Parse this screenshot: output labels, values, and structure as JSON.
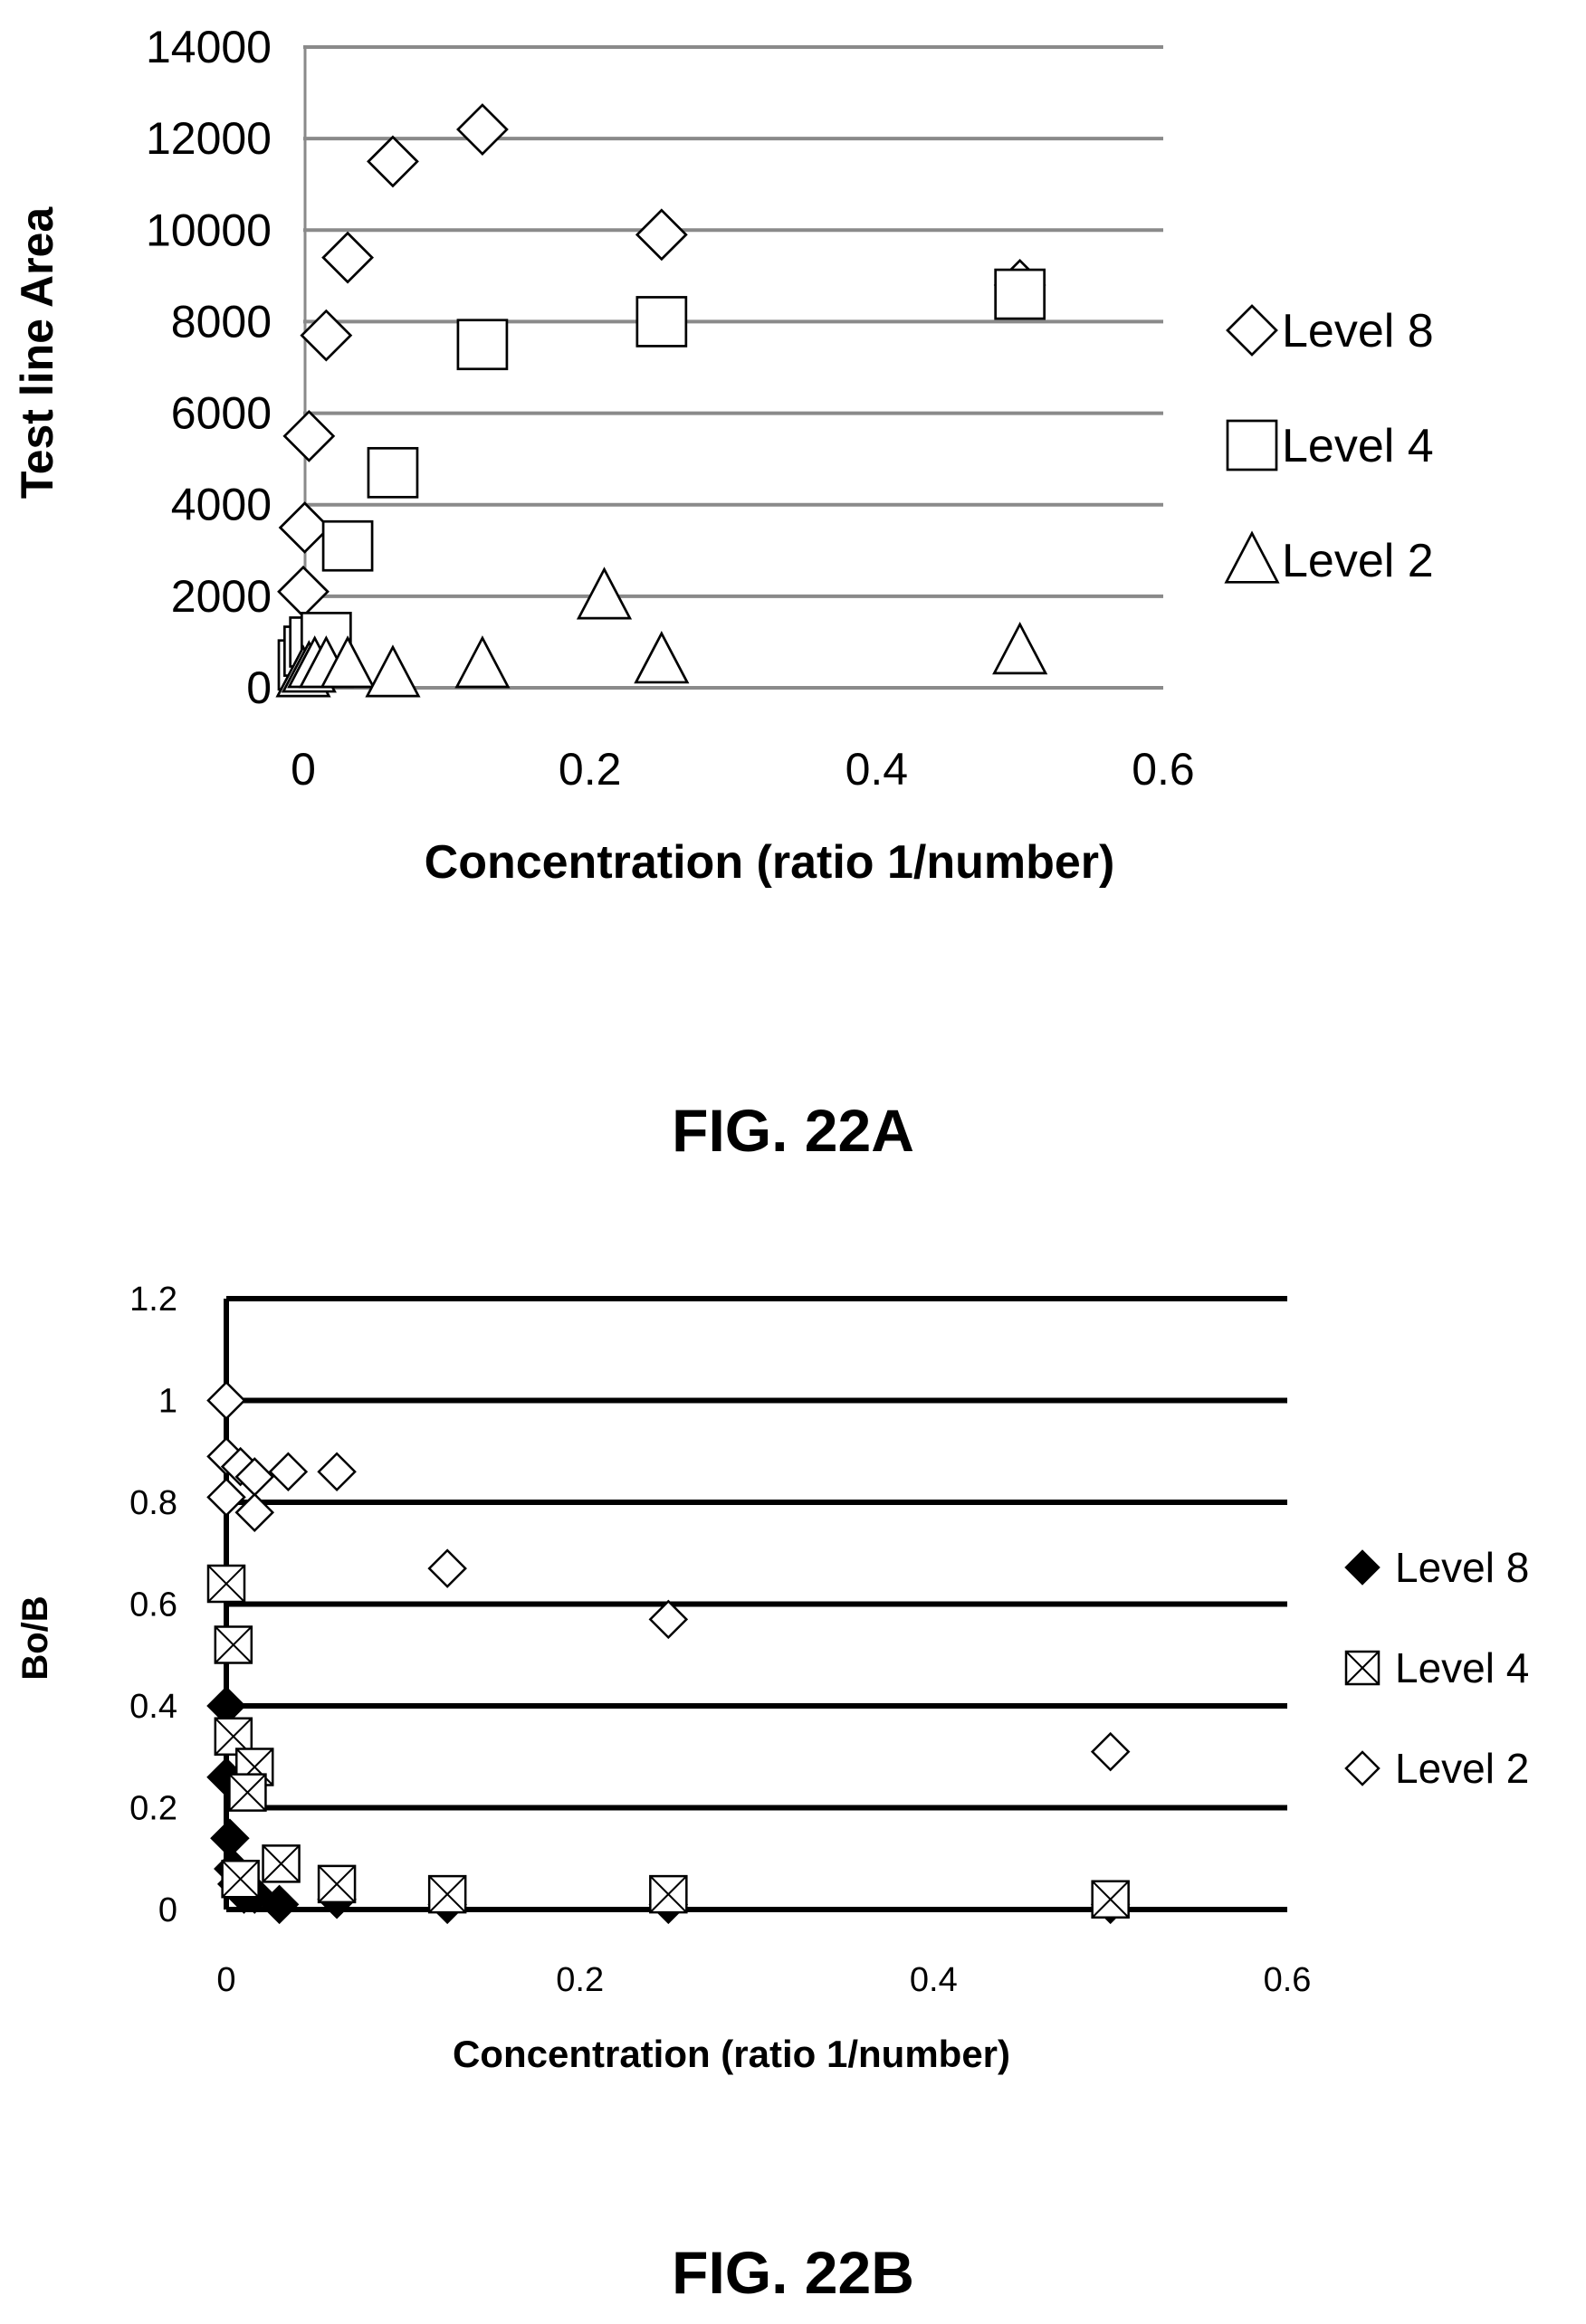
{
  "figures": {
    "fig_a_caption": "FIG. 22A",
    "fig_b_caption": "FIG. 22B"
  },
  "chart_data": [
    {
      "type": "scatter",
      "caption": "FIG. 22A",
      "xlabel": "Concentration (ratio 1/number)",
      "ylabel": "Test line Area",
      "xlim": [
        0,
        0.6
      ],
      "ylim": [
        0,
        14000
      ],
      "xticks": [
        "0",
        "0.2",
        "0.4",
        "0.6"
      ],
      "yticks": [
        "0",
        "2000",
        "4000",
        "6000",
        "8000",
        "10000",
        "12000",
        "14000"
      ],
      "grid": "horizontal",
      "legend_position": "right",
      "series": [
        {
          "name": "Level 8",
          "marker": "diamond-open",
          "points": [
            [
              0.0,
              2100
            ],
            [
              0.001,
              3500
            ],
            [
              0.004,
              5500
            ],
            [
              0.016,
              7700
            ],
            [
              0.031,
              9400
            ],
            [
              0.0625,
              11500
            ],
            [
              0.125,
              12200
            ],
            [
              0.25,
              9900
            ],
            [
              0.5,
              8800
            ]
          ]
        },
        {
          "name": "Level 4",
          "marker": "square-open",
          "points": [
            [
              0.0,
              500
            ],
            [
              0.004,
              800
            ],
            [
              0.008,
              1000
            ],
            [
              0.016,
              1100
            ],
            [
              0.031,
              3100
            ],
            [
              0.0625,
              4700
            ],
            [
              0.125,
              7500
            ],
            [
              0.25,
              8000
            ],
            [
              0.5,
              8600
            ]
          ]
        },
        {
          "name": "Level 2",
          "marker": "triangle-open",
          "points": [
            [
              0.0,
              300
            ],
            [
              0.004,
              400
            ],
            [
              0.008,
              500
            ],
            [
              0.016,
              500
            ],
            [
              0.031,
              500
            ],
            [
              0.0625,
              300
            ],
            [
              0.125,
              500
            ],
            [
              0.21,
              2000
            ],
            [
              0.25,
              600
            ],
            [
              0.5,
              800
            ]
          ]
        }
      ]
    },
    {
      "type": "scatter",
      "caption": "FIG. 22B",
      "xlabel": "Concentration (ratio 1/number)",
      "ylabel": "Bo/B",
      "xlim": [
        0,
        0.6
      ],
      "ylim": [
        0,
        1.2
      ],
      "xticks": [
        "0",
        "0.2",
        "0.4",
        "0.6"
      ],
      "yticks": [
        "0",
        "0.2",
        "0.4",
        "0.6",
        "0.8",
        "1",
        "1.2"
      ],
      "grid": "horizontal",
      "legend_position": "right",
      "series": [
        {
          "name": "Level 8",
          "marker": "diamond-filled",
          "points": [
            [
              0.0,
              0.4
            ],
            [
              0.0,
              0.26
            ],
            [
              0.002,
              0.14
            ],
            [
              0.004,
              0.08
            ],
            [
              0.006,
              0.05
            ],
            [
              0.01,
              0.03
            ],
            [
              0.016,
              0.03
            ],
            [
              0.03,
              0.01
            ],
            [
              0.0625,
              0.02
            ],
            [
              0.125,
              0.01
            ],
            [
              0.25,
              0.01
            ],
            [
              0.5,
              0.01
            ]
          ]
        },
        {
          "name": "Level 4",
          "marker": "square-x",
          "points": [
            [
              0.0,
              0.64
            ],
            [
              0.004,
              0.52
            ],
            [
              0.004,
              0.34
            ],
            [
              0.016,
              0.28
            ],
            [
              0.012,
              0.23
            ],
            [
              0.008,
              0.06
            ],
            [
              0.031,
              0.09
            ],
            [
              0.0625,
              0.05
            ],
            [
              0.125,
              0.03
            ],
            [
              0.25,
              0.03
            ],
            [
              0.5,
              0.02
            ]
          ]
        },
        {
          "name": "Level 2",
          "marker": "diamond-open",
          "points": [
            [
              0.0,
              1.0
            ],
            [
              0.0,
              0.89
            ],
            [
              0.0,
              0.81
            ],
            [
              0.008,
              0.87
            ],
            [
              0.016,
              0.85
            ],
            [
              0.016,
              0.78
            ],
            [
              0.035,
              0.86
            ],
            [
              0.0625,
              0.86
            ],
            [
              0.125,
              0.67
            ],
            [
              0.25,
              0.57
            ],
            [
              0.5,
              0.31
            ]
          ]
        }
      ]
    }
  ]
}
